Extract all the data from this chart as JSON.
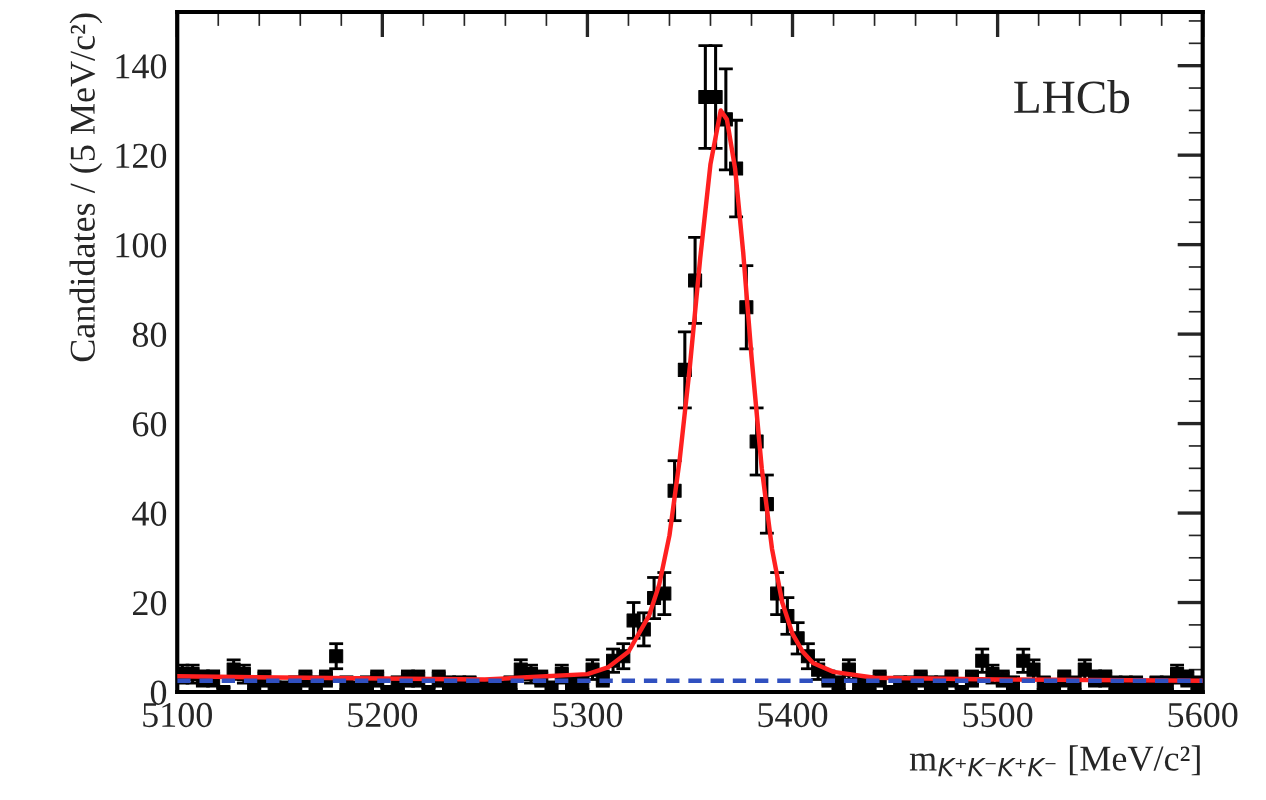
{
  "chart_data": {
    "type": "scatter",
    "xlabel": "m$_{K⁺K⁻K⁺K⁻}$ [MeV/c²]",
    "ylabel": "Candidates / (5 MeV/c²)",
    "annotations": [
      "LHCb"
    ],
    "xlim": [
      5100,
      5600
    ],
    "xticks": [
      5100,
      5200,
      5300,
      5400,
      5500,
      5600
    ],
    "ylim": [
      0,
      152
    ],
    "yticks": [
      0,
      20,
      40,
      60,
      80,
      100,
      120,
      140
    ],
    "grid": false,
    "series": [
      {
        "color": "#000000",
        "marker": "square",
        "x": [
          5102.5,
          5107.5,
          5112.5,
          5117.5,
          5122.5,
          5127.5,
          5132.5,
          5137.5,
          5142.5,
          5147.5,
          5152.5,
          5157.5,
          5162.5,
          5167.5,
          5172.5,
          5177.5,
          5182.5,
          5187.5,
          5192.5,
          5197.5,
          5202.5,
          5207.5,
          5212.5,
          5217.5,
          5222.5,
          5227.5,
          5232.5,
          5237.5,
          5242.5,
          5247.5,
          5252.5,
          5257.5,
          5262.5,
          5267.5,
          5272.5,
          5277.5,
          5282.5,
          5287.5,
          5292.5,
          5297.5,
          5302.5,
          5307.5,
          5312.5,
          5317.5,
          5322.5,
          5327.5,
          5332.5,
          5337.5,
          5342.5,
          5347.5,
          5352.5,
          5357.5,
          5362.5,
          5367.5,
          5372.5,
          5377.5,
          5382.5,
          5387.5,
          5392.5,
          5397.5,
          5402.5,
          5407.5,
          5412.5,
          5417.5,
          5422.5,
          5427.5,
          5432.5,
          5437.5,
          5442.5,
          5447.5,
          5452.5,
          5457.5,
          5462.5,
          5467.5,
          5472.5,
          5477.5,
          5482.5,
          5487.5,
          5492.5,
          5497.5,
          5502.5,
          5507.5,
          5512.5,
          5517.5,
          5522.5,
          5527.5,
          5532.5,
          5537.5,
          5542.5,
          5547.5,
          5552.5,
          5557.5,
          5562.5,
          5567.5,
          5572.5,
          5577.5,
          5582.5,
          5587.5,
          5592.5,
          5597.5
        ],
        "values": [
          4,
          4,
          3,
          3,
          0,
          5,
          4,
          2,
          3,
          1,
          1,
          2,
          3,
          2,
          3,
          8,
          2,
          1,
          2,
          3,
          0,
          2,
          3,
          3,
          0,
          3,
          2,
          2,
          2,
          1,
          1,
          1,
          2,
          5,
          4,
          3,
          1,
          4,
          2,
          2,
          5,
          3,
          7,
          8,
          16,
          14,
          21,
          22,
          45,
          72,
          92,
          133,
          133,
          128,
          117,
          86,
          56,
          42,
          22,
          17,
          12,
          8,
          5,
          3,
          2,
          5,
          2,
          2,
          3,
          0,
          2,
          2,
          3,
          2,
          2,
          3,
          0,
          3,
          7,
          4,
          3,
          2,
          7,
          5,
          2,
          1,
          3,
          2,
          5,
          3,
          3,
          2,
          2,
          2,
          1,
          2,
          2,
          4,
          3,
          2
        ],
        "errors": [
          2,
          2,
          1.7,
          1.7,
          1,
          2.2,
          2,
          1.4,
          1.7,
          1,
          1,
          1.4,
          1.7,
          1.4,
          1.7,
          2.8,
          1.4,
          1,
          1.4,
          1.7,
          1,
          1.4,
          1.7,
          1.7,
          1,
          1.7,
          1.4,
          1.4,
          1.4,
          1,
          1,
          1,
          1.4,
          2.2,
          2,
          1.7,
          1,
          2,
          1.4,
          1.4,
          2.2,
          1.7,
          2.6,
          2.8,
          4,
          3.7,
          4.6,
          4.7,
          6.7,
          8.5,
          9.6,
          11.5,
          11.5,
          11.3,
          10.8,
          9.3,
          7.5,
          6.5,
          4.7,
          4.1,
          3.5,
          2.8,
          2.2,
          1.7,
          1.4,
          2.2,
          1.4,
          1.4,
          1.7,
          1,
          1.4,
          1.4,
          1.7,
          1.4,
          1.4,
          1.7,
          1,
          1.7,
          2.6,
          2,
          1.7,
          1.4,
          2.6,
          2.2,
          1.4,
          1,
          1.7,
          1.4,
          2.2,
          1.7,
          1.7,
          1.4,
          1.4,
          1.4,
          1,
          1.4,
          1.4,
          2,
          1.7,
          1.4
        ]
      },
      {
        "type": "line",
        "color": "#ff2020",
        "line_style": "solid",
        "x": [
          5100,
          5200,
          5250,
          5280,
          5300,
          5310,
          5320,
          5330,
          5335,
          5340,
          5345,
          5350,
          5355,
          5360,
          5365,
          5368,
          5372,
          5376,
          5380,
          5385,
          5390,
          5395,
          5400,
          5405,
          5410,
          5420,
          5440,
          5500,
          5600
        ],
        "values": [
          3.5,
          3,
          2.8,
          3.5,
          4,
          5.5,
          9,
          17,
          24,
          35,
          52,
          73,
          97,
          118,
          130,
          128,
          117,
          98,
          75,
          50,
          32,
          20,
          13,
          9,
          6.5,
          4.5,
          3.2,
          2.8,
          2.5
        ]
      },
      {
        "type": "line",
        "color": "#3050c0",
        "line_style": "dashed",
        "x": [
          5100,
          5600
        ],
        "values": [
          2.5,
          2.5
        ]
      }
    ]
  }
}
